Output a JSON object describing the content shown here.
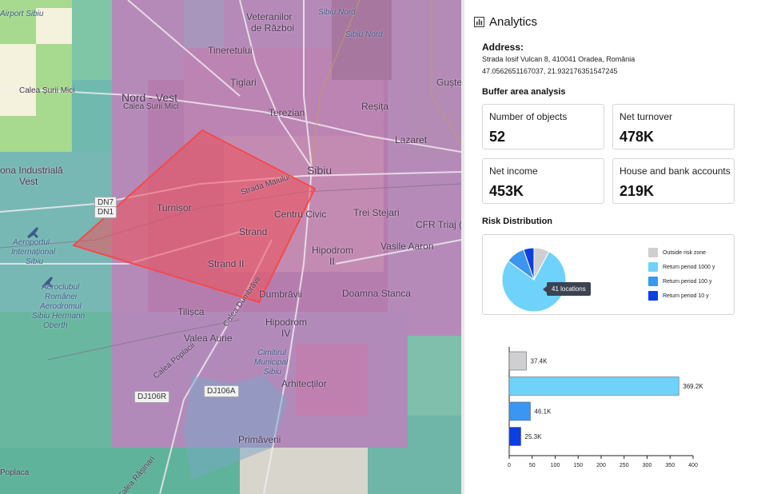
{
  "map": {
    "labels": {
      "airport_top": "Airport Sibiu",
      "veteranilor": "Veteranilor",
      "de_razboi": "de Război",
      "sibiu_nord_1": "Sibiu Nord",
      "sibiu_nord_2": "Sibiu Nord",
      "tineretului": "Tineretului",
      "tiglari": "Țiglari",
      "guste": "Guște",
      "calea_surii_mici_1": "Calea Șurii Mici",
      "nord_vest": "Nord - Vest",
      "calea_surii_mici_2": "Calea Șurii Mici",
      "terezian": "Terezian",
      "resita": "Reșița",
      "lazaret": "Lazaret",
      "zona_industriala": "ona Industrială",
      "vest": "Vest",
      "sibiu": "Sibiu",
      "strada_maiului": "Strada Maiului",
      "turnisor": "Turnișor",
      "centru_civic": "Centru Civic",
      "trei_stejari": "Trei Stejari",
      "cfr_triaj": "CFR Triaj (E",
      "strand": "Strand",
      "strand_ii": "Strand II",
      "hipodrom_ii_a": "Hipodrom",
      "hipodrom_ii_b": "II",
      "vasile_aaron": "Vasile Aaron",
      "aeroportul_1": "Aeroportul",
      "aeroportul_2": "Internațional",
      "aeroportul_3": "Sibiu",
      "aeroclubul_1": "Aeroclubul",
      "aeroclubul_2": "Românei",
      "aeroclubul_3": "Aerodromul",
      "aeroclubul_4": "Sibiu Hermann",
      "aeroclubul_5": "Oberth",
      "dumbravii": "Dumbrăvii",
      "doamna_stanca": "Doamna Stanca",
      "tilisca": "Tilișca",
      "calea_dumbravii": "Calea Dumbrăvii",
      "hipodrom_iv_a": "Hipodrom",
      "hipodrom_iv_b": "IV",
      "valea_aurie": "Valea Aurie",
      "cimitir_1": "Cimitirul",
      "cimitir_2": "Municipal",
      "cimitir_3": "Sibiu",
      "arhitectilor": "Arhitecților",
      "calea_poplacii": "Calea Poplacii",
      "primaverii": "Primăverii",
      "poplaca": "Poplaca",
      "calea_rasinari": "Calea Rășinari"
    },
    "road_badges": {
      "dn7": "DN7",
      "dn1": "DN1",
      "dj106r": "DJ106R",
      "dj106a": "DJ106A"
    }
  },
  "panel": {
    "title": "Analytics",
    "icon": "bar-chart-icon",
    "address": {
      "label": "Address:",
      "line1": "Strada Iosif Vulcan 8, 410041 Oradea, România",
      "line2": "47.0562651167037, 21.932176351547245"
    },
    "buffer": {
      "title": "Buffer area analysis",
      "cards": [
        {
          "label": "Number of objects",
          "value": "52"
        },
        {
          "label": "Net turnover",
          "value": "478K"
        },
        {
          "label": "Net income",
          "value": "453K"
        },
        {
          "label": "House and bank accounts",
          "value": "219K"
        }
      ]
    },
    "risk": {
      "title": "Risk Distribution",
      "tooltip": "41 locations",
      "legend": [
        {
          "label": "Outside risk zone",
          "color": "#cfcfd1"
        },
        {
          "label": "Return period 1000 y",
          "color": "#6fd2fb"
        },
        {
          "label": "Return period 100 y",
          "color": "#3b95f1"
        },
        {
          "label": "Return period 10 y",
          "color": "#0b3fe0"
        }
      ]
    }
  },
  "chart_data": [
    {
      "type": "pie",
      "labels": [
        "Outside risk zone",
        "Return period 1000 y",
        "Return period 100 y",
        "Return period 10 y"
      ],
      "values": [
        37.4,
        369.2,
        46.1,
        25.3
      ],
      "colors": [
        "#cfcfd1",
        "#6fd2fb",
        "#3b95f1",
        "#0b3fe0"
      ]
    },
    {
      "type": "bar",
      "orientation": "horizontal",
      "categories": [
        "Outside risk zone",
        "Return period 1000 y",
        "Return period 100 y",
        "Return period 10 y"
      ],
      "values": [
        37.4,
        369.2,
        46.1,
        25.3
      ],
      "value_labels": [
        "37.4K",
        "369.2K",
        "46.1K",
        "25.3K"
      ],
      "colors": [
        "#cfcfd1",
        "#6fd2fb",
        "#3b95f1",
        "#0b3fe0"
      ],
      "xlim": [
        0,
        400
      ],
      "xticks": [
        "0",
        "50",
        "100",
        "150",
        "200",
        "250",
        "300",
        "350",
        "400"
      ]
    }
  ]
}
